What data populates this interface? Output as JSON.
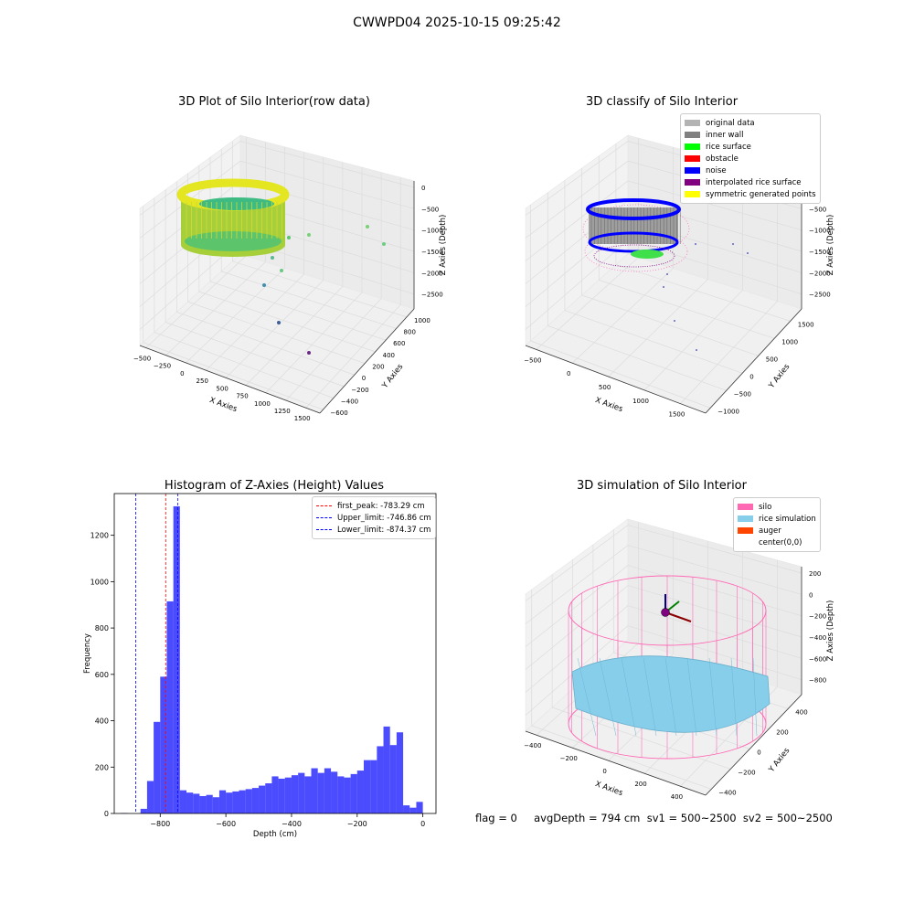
{
  "suptitle": "CWWPD04 2025-10-15 09:25:42",
  "status_text": "flag = 0     avgDepth = 794 cm  sv1 = 500~2500  sv2 = 500~2500",
  "panels": {
    "raw": {
      "title": "3D Plot of Silo Interior(row data)",
      "xlabel": "X Axies",
      "ylabel": "Y Axies",
      "zlabel": "Z Axies (Depth)",
      "xticks": [
        "−500",
        "−250",
        "0",
        "250",
        "500",
        "750",
        "1000",
        "1250",
        "1500"
      ],
      "yticks": [
        "−600",
        "−400",
        "−200",
        "0",
        "200",
        "400",
        "600",
        "800",
        "1000"
      ],
      "zticks": [
        "0",
        "−500",
        "−1000",
        "−1500",
        "−2000",
        "−2500"
      ]
    },
    "classify": {
      "title": "3D classify of Silo Interior",
      "xlabel": "X Axies",
      "ylabel": "Y Axies",
      "zlabel": "Z Axies (Depth)",
      "xticks": [
        "−500",
        "0",
        "500",
        "1000",
        "1500"
      ],
      "yticks": [
        "−1000",
        "−500",
        "0",
        "500",
        "1000",
        "1500"
      ],
      "zticks": [
        "0",
        "−500",
        "−1000",
        "−1500",
        "−2000",
        "−2500"
      ],
      "legend": [
        {
          "label": "original data",
          "color": "#b3b3b3"
        },
        {
          "label": "inner wall",
          "color": "#808080"
        },
        {
          "label": "rice surface",
          "color": "#00ff00"
        },
        {
          "label": "obstacle",
          "color": "#ff0000"
        },
        {
          "label": "noise",
          "color": "#0000ff"
        },
        {
          "label": "interpolated rice surface",
          "color": "#800080"
        },
        {
          "label": "symmetric generated points",
          "color": "#ffff00"
        }
      ]
    },
    "simulation": {
      "title": "3D simulation of Silo Interior",
      "xlabel": "X Axies",
      "ylabel": "Y Axies",
      "zlabel": "Z Axies (Depth)",
      "xticks": [
        "−400",
        "−200",
        "0",
        "200",
        "400"
      ],
      "yticks": [
        "−400",
        "−200",
        "0",
        "200",
        "400"
      ],
      "zticks": [
        "200",
        "0",
        "−200",
        "−400",
        "−600",
        "−800"
      ],
      "legend": [
        {
          "label": "silo",
          "color": "#ff69b4"
        },
        {
          "label": "rice simulation",
          "color": "#87ceeb"
        },
        {
          "label": "auger",
          "color": "#ff4500"
        },
        {
          "label": "center(0,0)",
          "color": "#ffffff"
        }
      ]
    }
  },
  "chart_data": {
    "type": "bar",
    "title": "Histogram of Z-Axies (Height) Values",
    "xlabel": "Depth (cm)",
    "ylabel": "Frequency",
    "xlim": [
      -940,
      40
    ],
    "ylim": [
      0,
      1380
    ],
    "xticks": [
      -800,
      -600,
      -400,
      -200,
      0
    ],
    "yticks": [
      0,
      200,
      400,
      600,
      800,
      1000,
      1200
    ],
    "bin_width": 20,
    "bin_starts": [
      -920,
      -900,
      -880,
      -860,
      -840,
      -820,
      -800,
      -780,
      -760,
      -740,
      -720,
      -700,
      -680,
      -660,
      -640,
      -620,
      -600,
      -580,
      -560,
      -540,
      -520,
      -500,
      -480,
      -460,
      -440,
      -420,
      -400,
      -380,
      -360,
      -340,
      -320,
      -300,
      -280,
      -260,
      -240,
      -220,
      -200,
      -180,
      -160,
      -140,
      -120,
      -100,
      -80,
      -60,
      -40,
      -20
    ],
    "counts": [
      2,
      0,
      0,
      20,
      140,
      395,
      590,
      915,
      1325,
      100,
      90,
      85,
      75,
      80,
      70,
      100,
      90,
      95,
      100,
      105,
      110,
      120,
      130,
      160,
      150,
      155,
      165,
      175,
      160,
      195,
      175,
      195,
      180,
      160,
      155,
      170,
      185,
      230,
      230,
      290,
      375,
      295,
      350,
      35,
      25,
      50
    ],
    "color": "#0000ff",
    "lines": [
      {
        "label": "first_peak: -783.29 cm",
        "x": -783.29,
        "color": "#ff0000"
      },
      {
        "label": "Upper_limit: -746.86 cm",
        "x": -746.86,
        "color": "#0000ff"
      },
      {
        "label": "Lower_limit: -874.37 cm",
        "x": -874.37,
        "color": "#0000ff"
      }
    ],
    "legend_position": "top-right",
    "grid": false
  }
}
